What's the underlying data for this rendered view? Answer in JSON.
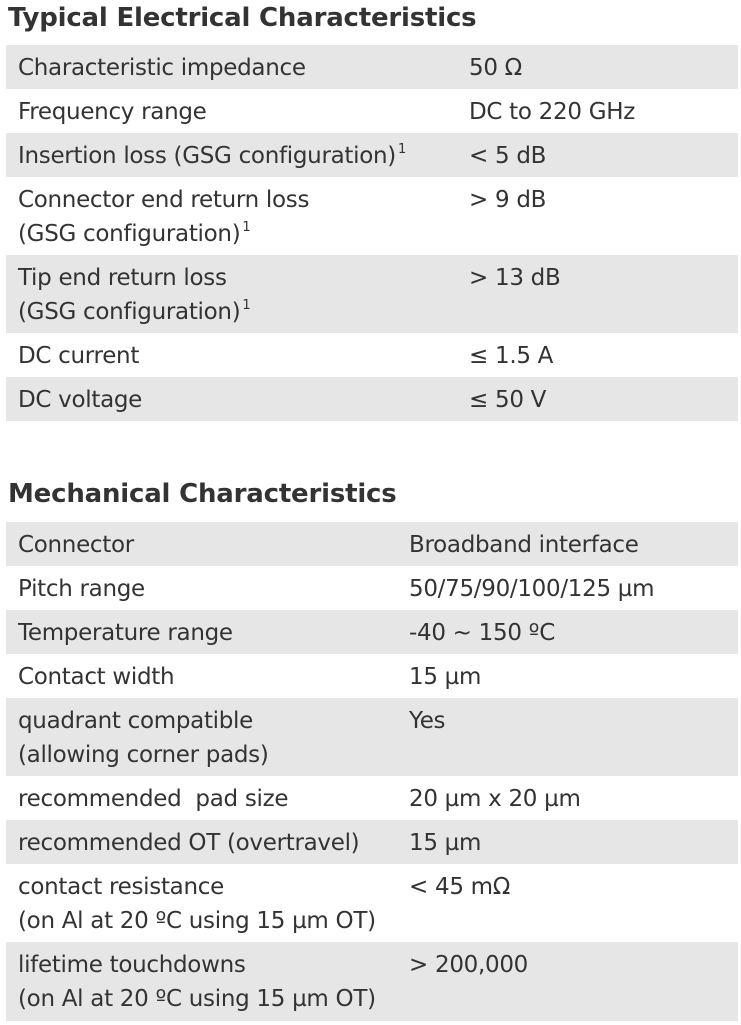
{
  "electrical": {
    "title": "Typical Electrical Characteristics",
    "rows": [
      {
        "label": "Characteristic impedance",
        "note": "",
        "value": "50 Ω"
      },
      {
        "label": "Frequency range",
        "note": "",
        "value": "DC to 220 GHz"
      },
      {
        "label": "Insertion loss (GSG configuration)",
        "note": "1",
        "value": "< 5 dB"
      },
      {
        "label": "Connector end return loss",
        "label2": "(GSG configuration)",
        "note": "1",
        "value": "> 9 dB"
      },
      {
        "label": "Tip end return loss",
        "label2": "(GSG configuration)",
        "note": "1",
        "value": "> 13 dB"
      },
      {
        "label": "DC current",
        "note": "",
        "value": "≤ 1.5 A"
      },
      {
        "label": "DC voltage",
        "note": "",
        "value": "≤ 50 V"
      }
    ]
  },
  "mechanical": {
    "title": "Mechanical Characteristics",
    "rows": [
      {
        "label": "Connector",
        "value": "Broadband interface"
      },
      {
        "label": "Pitch range",
        "value": "50/75/90/100/125 µm"
      },
      {
        "label": "Temperature range",
        "value": "-40 ~ 150 ºC"
      },
      {
        "label": "Contact width",
        "value": "15 µm"
      },
      {
        "label": "quadrant compatible",
        "label2": "(allowing corner pads)",
        "value": "Yes"
      },
      {
        "label": "recommended  pad size",
        "value": "20 µm x 20 µm"
      },
      {
        "label": "recommended OT (overtravel)",
        "value": "15 µm"
      },
      {
        "label": "contact resistance",
        "label2": "(on Al at 20 ºC using 15 µm OT)",
        "value": "< 45 mΩ"
      },
      {
        "label": "lifetime touchdowns",
        "label2": "(on Al at 20 ºC using 15 µm OT)",
        "value": "> 200,000"
      }
    ]
  }
}
